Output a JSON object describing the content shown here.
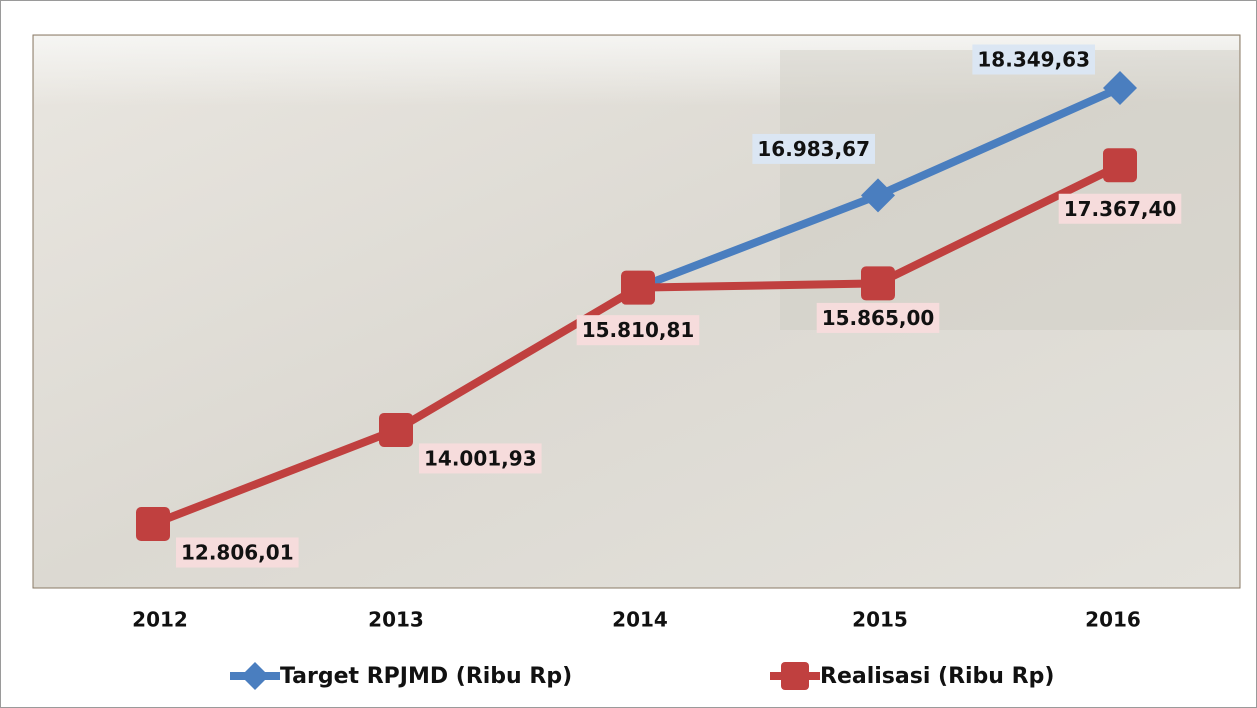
{
  "chart_data": {
    "type": "line",
    "categories": [
      "2012",
      "2013",
      "2014",
      "2015",
      "2016"
    ],
    "series": [
      {
        "name": "Target RPJMD (Ribu Rp)",
        "color": "#4a7ebf",
        "marker": "diamond",
        "values": [
          null,
          null,
          15810.81,
          16983.67,
          18349.63
        ],
        "value_labels": [
          null,
          null,
          null,
          "16.983,67",
          "18.349,63"
        ]
      },
      {
        "name": "Realisasi (Ribu Rp)",
        "color": "#c0403f",
        "marker": "square",
        "values": [
          12806.01,
          14001.93,
          15810.81,
          15865.0,
          17367.4
        ],
        "value_labels": [
          "12.806,01",
          "14.001,93",
          "15.810,81",
          "15.865,00",
          "17.367,40"
        ]
      }
    ],
    "legend": "bottom"
  }
}
